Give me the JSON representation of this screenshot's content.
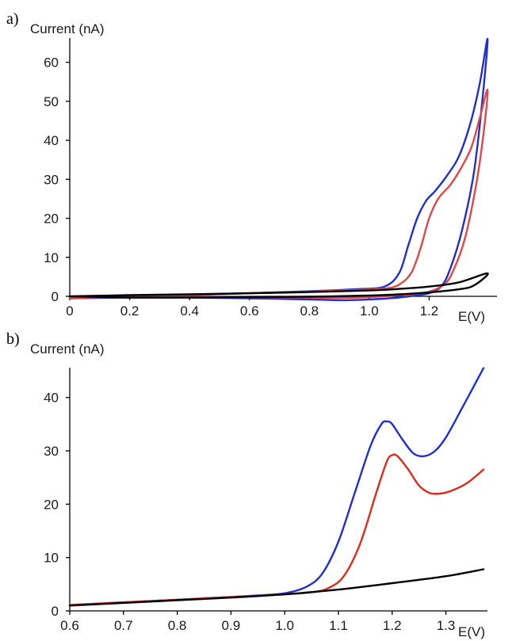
{
  "chart_data": [
    {
      "type": "line",
      "panel_label": "a)",
      "ylabel": "Current (nA)",
      "xlabel": "E(V)",
      "xlim": [
        0,
        1.4
      ],
      "ylim": [
        0,
        65
      ],
      "x_ticks": [
        "0",
        "0.2",
        "0.4",
        "0.6",
        "0.8",
        "1.0",
        "1.2"
      ],
      "y_ticks": [
        "0",
        "10",
        "20",
        "30",
        "40",
        "50",
        "60"
      ],
      "grid": false,
      "series": [
        {
          "color": "#1f2fd0",
          "x": [
            0.0,
            0.2,
            0.4,
            0.6,
            0.8,
            0.95,
            1.05,
            1.1,
            1.13,
            1.16,
            1.19,
            1.22,
            1.26,
            1.3,
            1.34,
            1.37,
            1.395,
            1.38,
            1.35,
            1.31,
            1.27,
            1.24,
            1.2,
            1.15,
            1.1,
            1.0,
            0.9,
            0.8,
            0.6,
            0.4,
            0.2,
            0.0
          ],
          "y": [
            -0.5,
            0.0,
            0.3,
            0.8,
            1.3,
            1.8,
            2.5,
            6.0,
            13.0,
            20.0,
            24.5,
            27.0,
            31.0,
            36.0,
            45.0,
            55.0,
            66.0,
            52.0,
            32.0,
            17.0,
            7.0,
            2.5,
            0.8,
            0.2,
            -0.3,
            -0.8,
            -1.0,
            -0.8,
            -0.5,
            -0.3,
            -0.3,
            -0.5
          ]
        },
        {
          "color": "#e04848",
          "x": [
            0.0,
            0.2,
            0.4,
            0.6,
            0.8,
            0.95,
            1.05,
            1.1,
            1.14,
            1.17,
            1.2,
            1.23,
            1.27,
            1.3,
            1.34,
            1.37,
            1.395,
            1.385,
            1.36,
            1.32,
            1.28,
            1.25,
            1.2,
            1.15,
            1.1,
            1.0,
            0.9,
            0.8,
            0.6,
            0.4,
            0.2,
            0.0
          ],
          "y": [
            -0.5,
            0.1,
            0.4,
            0.8,
            1.2,
            1.6,
            2.0,
            3.0,
            6.0,
            12.0,
            20.0,
            25.0,
            28.5,
            32.0,
            38.0,
            46.0,
            53.0,
            44.0,
            30.0,
            15.0,
            6.5,
            3.0,
            1.2,
            0.6,
            0.3,
            -0.2,
            -0.4,
            -0.3,
            -0.2,
            -0.1,
            0.0,
            -0.5
          ]
        },
        {
          "color": "#000000",
          "x": [
            0.0,
            0.2,
            0.4,
            0.6,
            0.8,
            1.0,
            1.1,
            1.2,
            1.3,
            1.395,
            1.35,
            1.3,
            1.2,
            1.1,
            1.0,
            0.8,
            0.6,
            0.4,
            0.2,
            0.0
          ],
          "y": [
            0.0,
            0.3,
            0.5,
            0.8,
            1.1,
            1.5,
            1.9,
            2.5,
            3.6,
            5.9,
            2.8,
            1.8,
            1.0,
            0.5,
            0.2,
            -0.1,
            -0.2,
            -0.3,
            -0.3,
            0.0
          ]
        }
      ]
    },
    {
      "type": "line",
      "panel_label": "b)",
      "ylabel": "Current (nA)",
      "xlabel": "E(V)",
      "xlim": [
        0.6,
        1.37
      ],
      "ylim": [
        0,
        45
      ],
      "x_ticks": [
        "0.6",
        "0.7",
        "0.8",
        "0.9",
        "1.0",
        "1.1",
        "1.2",
        "1.3"
      ],
      "y_ticks": [
        "0",
        "10",
        "20",
        "30",
        "40"
      ],
      "grid": false,
      "series": [
        {
          "color": "#1f2fd0",
          "x": [
            0.6,
            0.7,
            0.8,
            0.9,
            0.95,
            1.0,
            1.04,
            1.07,
            1.1,
            1.13,
            1.16,
            1.18,
            1.19,
            1.2,
            1.22,
            1.24,
            1.26,
            1.28,
            1.3,
            1.33,
            1.37
          ],
          "y": [
            1.1,
            1.6,
            2.1,
            2.6,
            2.9,
            3.3,
            4.5,
            7.0,
            13.0,
            22.0,
            31.0,
            35.0,
            35.5,
            35.0,
            32.0,
            29.5,
            29.0,
            30.0,
            32.5,
            38.0,
            45.5
          ]
        },
        {
          "color": "#e02a1a",
          "x": [
            0.6,
            0.7,
            0.8,
            0.9,
            0.95,
            1.0,
            1.05,
            1.08,
            1.11,
            1.14,
            1.17,
            1.19,
            1.2,
            1.21,
            1.23,
            1.25,
            1.27,
            1.29,
            1.31,
            1.34,
            1.37
          ],
          "y": [
            1.1,
            1.6,
            2.1,
            2.6,
            2.8,
            3.1,
            3.5,
            4.2,
            6.5,
            12.5,
            22.0,
            28.0,
            29.2,
            29.0,
            26.5,
            23.5,
            22.1,
            22.0,
            22.5,
            24.0,
            26.5
          ]
        },
        {
          "color": "#000000",
          "x": [
            0.6,
            0.7,
            0.8,
            0.9,
            1.0,
            1.1,
            1.2,
            1.3,
            1.37
          ],
          "y": [
            1.0,
            1.5,
            2.0,
            2.5,
            3.1,
            4.0,
            5.2,
            6.5,
            7.8
          ]
        }
      ]
    }
  ]
}
